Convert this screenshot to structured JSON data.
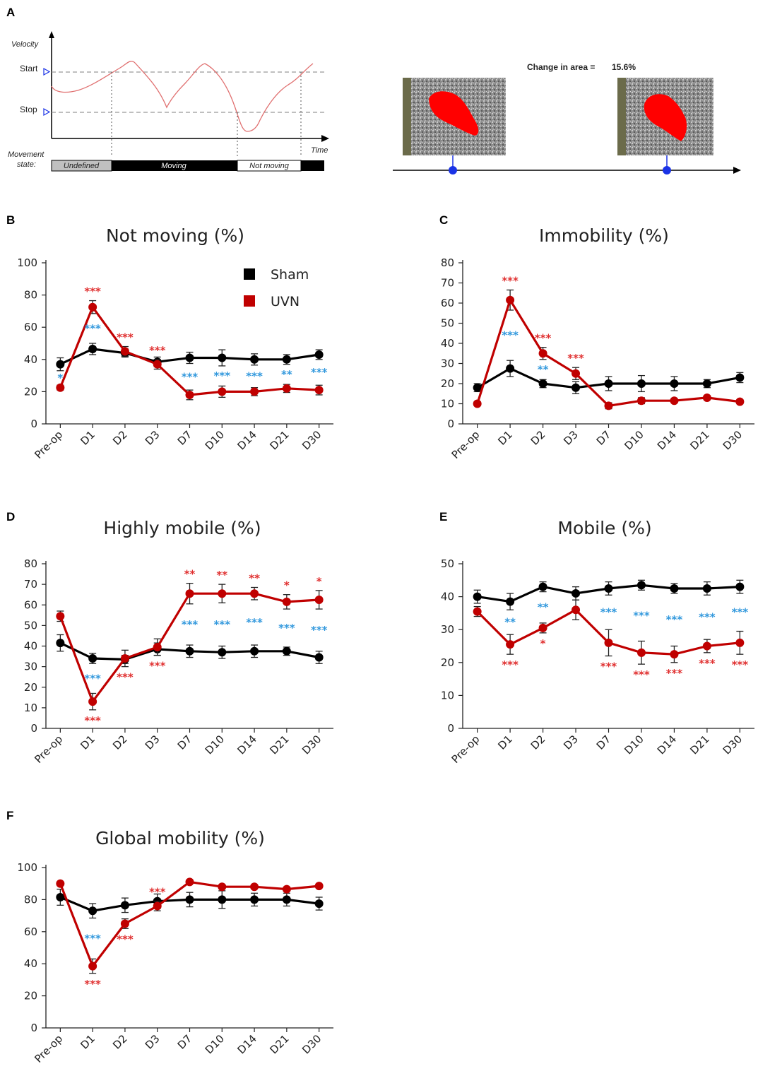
{
  "panel_labels": {
    "a": "A",
    "b": "B",
    "c": "C",
    "d": "D",
    "e": "E",
    "f": "F"
  },
  "panel_a": {
    "velocity_label": "Velocity",
    "start_label": "Start",
    "stop_label": "Stop",
    "time_label": "Time",
    "movement_state_label_1": "Movement",
    "movement_state_label_2": "state:",
    "states": [
      "Undefined",
      "Moving",
      "Not moving"
    ],
    "change_in_area_label": "Change in area =",
    "change_in_area_value": "15.6%",
    "colors": {
      "trace": "#e07070",
      "marker": "#1a33e6",
      "blob": "#ff0000"
    }
  },
  "legend": {
    "sham": "Sham",
    "uvn": "UVN"
  },
  "colors": {
    "sham": "#000000",
    "uvn": "#c00000",
    "sig_uvn": "#e03030",
    "sig_sham": "#3399dd"
  },
  "chart_data": [
    {
      "id": "B",
      "type": "line",
      "title": "Not moving (%)",
      "categories": [
        "Pre-op",
        "D1",
        "D2",
        "D3",
        "D7",
        "D10",
        "D14",
        "D21",
        "D30"
      ],
      "ylim": [
        0,
        100
      ],
      "yticks": [
        0,
        20,
        40,
        60,
        80,
        100
      ],
      "legend": true,
      "legend_position": "top-right",
      "series": [
        {
          "name": "Sham",
          "values": [
            37,
            46.5,
            44,
            38.5,
            41,
            41,
            40,
            40,
            43
          ],
          "errors": [
            4,
            3.5,
            2.5,
            3,
            3.5,
            5,
            3.5,
            3,
            3
          ]
        },
        {
          "name": "UVN",
          "values": [
            22.5,
            72.5,
            45,
            37,
            18,
            20,
            20,
            22,
            21
          ],
          "errors": [
            1.5,
            4,
            3,
            3,
            3,
            3.5,
            2.5,
            2.5,
            3
          ]
        }
      ],
      "significance_uvn": [
        {
          "category": "D1",
          "label": "***",
          "side": "above"
        },
        {
          "category": "D2",
          "label": "***",
          "side": "above"
        },
        {
          "category": "D3",
          "label": "***",
          "side": "above"
        }
      ],
      "significance_sham": [
        {
          "category": "Pre-op",
          "label": "*"
        },
        {
          "category": "D1",
          "label": "***"
        },
        {
          "category": "D7",
          "label": "***"
        },
        {
          "category": "D10",
          "label": "***"
        },
        {
          "category": "D14",
          "label": "***"
        },
        {
          "category": "D21",
          "label": "**"
        },
        {
          "category": "D30",
          "label": "***"
        }
      ]
    },
    {
      "id": "C",
      "type": "line",
      "title": "Immobility (%)",
      "categories": [
        "Pre-op",
        "D1",
        "D2",
        "D3",
        "D7",
        "D10",
        "D14",
        "D21",
        "D30"
      ],
      "ylim": [
        0,
        80
      ],
      "yticks": [
        0,
        10,
        20,
        30,
        40,
        50,
        60,
        70,
        80
      ],
      "legend": false,
      "series": [
        {
          "name": "Sham",
          "values": [
            18,
            27.5,
            20,
            18,
            20,
            20,
            20,
            20,
            23
          ],
          "errors": [
            2,
            4,
            2,
            3,
            3.5,
            4,
            3.5,
            2,
            2.5
          ]
        },
        {
          "name": "UVN",
          "values": [
            10,
            61.5,
            35,
            25,
            9,
            11.5,
            11.5,
            13,
            11
          ],
          "errors": [
            1,
            5,
            3,
            3,
            1.5,
            1.5,
            1,
            1,
            1
          ]
        }
      ],
      "significance_uvn": [
        {
          "category": "D1",
          "label": "***",
          "side": "above"
        },
        {
          "category": "D2",
          "label": "***",
          "side": "above"
        },
        {
          "category": "D3",
          "label": "***",
          "side": "above"
        }
      ],
      "significance_sham": [
        {
          "category": "D1",
          "label": "***"
        },
        {
          "category": "D2",
          "label": "**"
        }
      ]
    },
    {
      "id": "D",
      "type": "line",
      "title": "Highly mobile (%)",
      "categories": [
        "Pre-op",
        "D1",
        "D2",
        "D3",
        "D7",
        "D10",
        "D14",
        "D21",
        "D30"
      ],
      "ylim": [
        0,
        80
      ],
      "yticks": [
        0,
        10,
        20,
        30,
        40,
        50,
        60,
        70,
        80
      ],
      "legend": false,
      "series": [
        {
          "name": "Sham",
          "values": [
            41.5,
            34,
            33.5,
            38.5,
            37.5,
            37,
            37.5,
            37.5,
            34.5
          ],
          "errors": [
            4,
            2.5,
            2,
            3,
            3,
            3,
            3,
            2,
            3
          ]
        },
        {
          "name": "UVN",
          "values": [
            54.5,
            13,
            34,
            39.5,
            65.5,
            65.5,
            65.5,
            61.5,
            62.5
          ],
          "errors": [
            2.5,
            4,
            4,
            4,
            5,
            4.5,
            3,
            3.5,
            4.5
          ]
        }
      ],
      "significance_uvn": [
        {
          "category": "D1",
          "label": "***",
          "side": "below"
        },
        {
          "category": "D2",
          "label": "***",
          "side": "below"
        },
        {
          "category": "D3",
          "label": "***",
          "side": "below"
        },
        {
          "category": "D7",
          "label": "**",
          "side": "above"
        },
        {
          "category": "D10",
          "label": "**",
          "side": "above"
        },
        {
          "category": "D14",
          "label": "**",
          "side": "above"
        },
        {
          "category": "D21",
          "label": "*",
          "side": "above"
        },
        {
          "category": "D30",
          "label": "*",
          "side": "above"
        }
      ],
      "significance_sham": [
        {
          "category": "D1",
          "label": "***"
        },
        {
          "category": "D7",
          "label": "***"
        },
        {
          "category": "D10",
          "label": "***"
        },
        {
          "category": "D14",
          "label": "***"
        },
        {
          "category": "D21",
          "label": "***"
        },
        {
          "category": "D30",
          "label": "***"
        }
      ]
    },
    {
      "id": "E",
      "type": "line",
      "title": "Mobile (%)",
      "categories": [
        "Pre-op",
        "D1",
        "D2",
        "D3",
        "D7",
        "D10",
        "D14",
        "D21",
        "D30"
      ],
      "ylim": [
        0,
        50
      ],
      "yticks": [
        0,
        10,
        20,
        30,
        40,
        50
      ],
      "legend": false,
      "series": [
        {
          "name": "Sham",
          "values": [
            40,
            38.5,
            43,
            41,
            42.5,
            43.5,
            42.5,
            42.5,
            43
          ],
          "errors": [
            2,
            2.5,
            1.5,
            2,
            2,
            1.5,
            1.5,
            2,
            2
          ]
        },
        {
          "name": "UVN",
          "values": [
            35.5,
            25.5,
            30.5,
            36,
            26,
            23,
            22.5,
            25,
            26
          ],
          "errors": [
            1.5,
            3,
            1.5,
            3,
            4,
            3.5,
            2.5,
            2,
            3.5
          ]
        }
      ],
      "significance_uvn": [
        {
          "category": "D1",
          "label": "***",
          "side": "below"
        },
        {
          "category": "D2",
          "label": "*",
          "side": "below"
        },
        {
          "category": "D7",
          "label": "***",
          "side": "below"
        },
        {
          "category": "D10",
          "label": "***",
          "side": "below"
        },
        {
          "category": "D14",
          "label": "***",
          "side": "below"
        },
        {
          "category": "D21",
          "label": "***",
          "side": "below"
        },
        {
          "category": "D30",
          "label": "***",
          "side": "below"
        }
      ],
      "significance_sham": [
        {
          "category": "D1",
          "label": "**"
        },
        {
          "category": "D2",
          "label": "**"
        },
        {
          "category": "D7",
          "label": "***"
        },
        {
          "category": "D10",
          "label": "***"
        },
        {
          "category": "D14",
          "label": "***"
        },
        {
          "category": "D21",
          "label": "***"
        },
        {
          "category": "D30",
          "label": "***"
        }
      ]
    },
    {
      "id": "F",
      "type": "line",
      "title": "Global mobility (%)",
      "categories": [
        "Pre-op",
        "D1",
        "D2",
        "D3",
        "D7",
        "D10",
        "D14",
        "D21",
        "D30"
      ],
      "ylim": [
        0,
        100
      ],
      "yticks": [
        0,
        20,
        40,
        60,
        80,
        100
      ],
      "legend": false,
      "series": [
        {
          "name": "Sham",
          "values": [
            81.5,
            73,
            76.5,
            79,
            80,
            80,
            80,
            80,
            77.5
          ],
          "errors": [
            5,
            4.5,
            4.5,
            4.5,
            4.5,
            5.5,
            4,
            4,
            4
          ]
        },
        {
          "name": "UVN",
          "values": [
            90,
            38.5,
            65,
            76,
            91,
            88,
            88,
            86.5,
            88.5
          ],
          "errors": [
            1,
            4.5,
            3,
            3,
            1,
            1,
            1,
            1,
            1
          ]
        }
      ],
      "significance_uvn": [
        {
          "category": "D1",
          "label": "***",
          "side": "below"
        },
        {
          "category": "D2",
          "label": "***",
          "side": "below"
        },
        {
          "category": "D3",
          "label": "***",
          "side": "above"
        }
      ],
      "significance_sham": [
        {
          "category": "D1",
          "label": "***"
        }
      ]
    }
  ]
}
